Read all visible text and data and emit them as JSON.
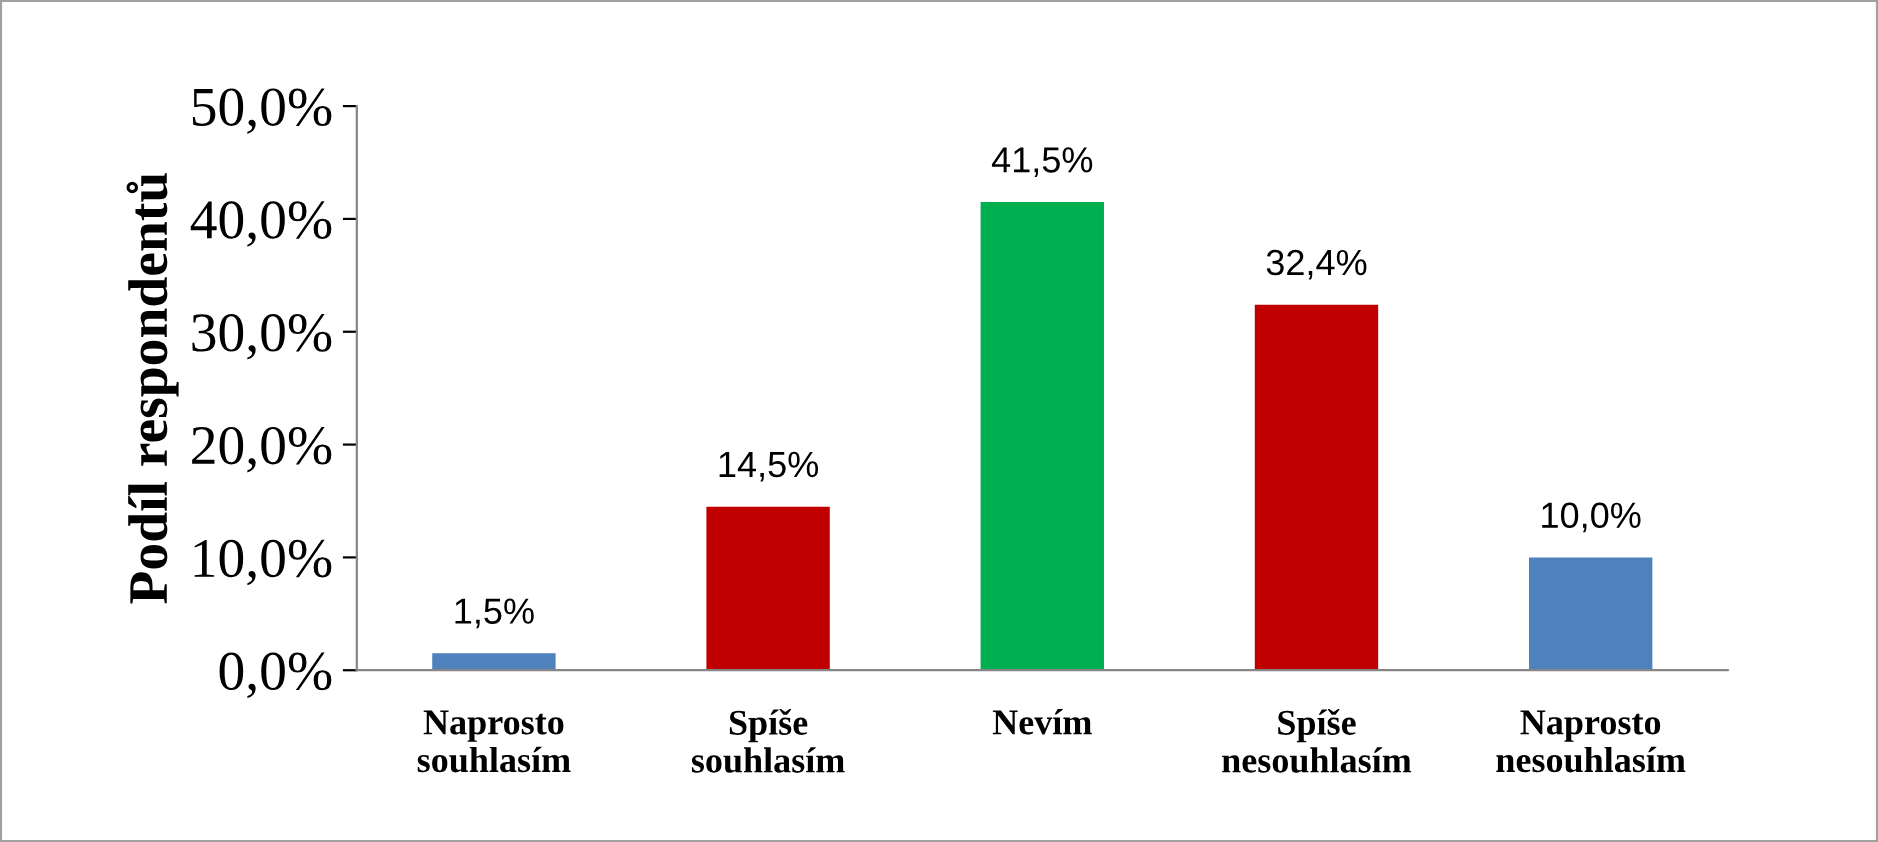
{
  "chart_data": {
    "type": "bar",
    "ylabel": "Podíl respondentů",
    "categories": [
      "Naprosto\nsouhlasím",
      "Spíše\nsouhlasím",
      "Nevím",
      "Spíše\nnesouhlasím",
      "Naprosto\nnesouhlasím"
    ],
    "values": [
      1.5,
      14.5,
      41.5,
      32.4,
      10.0
    ],
    "value_labels": [
      "1,5%",
      "14,5%",
      "41,5%",
      "32,4%",
      "10,0%"
    ],
    "colors": [
      "#4f81bd",
      "#c00000",
      "#00b050",
      "#c00000",
      "#4f81bd"
    ],
    "ylim": [
      0,
      50
    ],
    "yticks": [
      {
        "value": 0,
        "label": "0,0%"
      },
      {
        "value": 10,
        "label": "10,0%"
      },
      {
        "value": 20,
        "label": "20,0%"
      },
      {
        "value": 30,
        "label": "30,0%"
      },
      {
        "value": 40,
        "label": "40,0%"
      },
      {
        "value": 50,
        "label": "50,0%"
      }
    ],
    "grid": false,
    "legend": false
  }
}
